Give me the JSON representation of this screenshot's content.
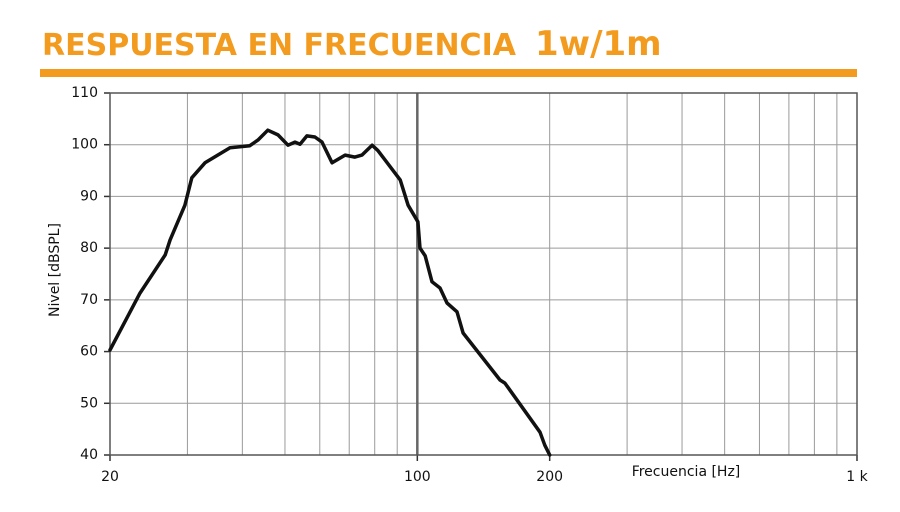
{
  "chart_data": {
    "type": "line",
    "title": "RESPUESTA EN FRECUENCIA",
    "subtitle": "1w/1m",
    "x_label": "Frecuencia [Hz]",
    "y_label": "Nivel [dBSPL]",
    "x_scale": "log",
    "xlim": [
      20,
      1000
    ],
    "xticks": [
      20,
      100,
      200,
      {
        "value": 1000,
        "label": "1 k"
      }
    ],
    "x_minor_ticks": [
      30,
      40,
      50,
      60,
      70,
      80,
      90,
      300,
      400,
      500,
      600,
      700,
      800,
      900
    ],
    "ylim": [
      40,
      110
    ],
    "yticks": [
      40,
      50,
      60,
      70,
      80,
      90,
      100,
      110
    ],
    "grid": true,
    "color": "#111111",
    "x": [
      20,
      23.4,
      26.7,
      27.4,
      29.6,
      30.7,
      32.9,
      37.5,
      41.6,
      43.4,
      45.7,
      48.2,
      50.8,
      52.7,
      54.1,
      56.1,
      58.5,
      60.7,
      64,
      68.5,
      72.1,
      74.8,
      78.9,
      81.3,
      91.4,
      95.3,
      100.3,
      101.4,
      104.2,
      108,
      112.6,
      116.8,
      123.1,
      127.1,
      154.2,
      158.2,
      190.1,
      195,
      200
    ],
    "values": [
      60.3,
      71.3,
      78.7,
      81.6,
      88.3,
      93.6,
      96.5,
      99.4,
      99.8,
      100.9,
      102.8,
      101.9,
      99.9,
      100.5,
      100.1,
      101.7,
      101.5,
      100.5,
      96.5,
      98,
      97.6,
      98,
      99.9,
      98.9,
      93.2,
      88.3,
      85.1,
      80,
      78.5,
      73.5,
      72.3,
      69.4,
      67.7,
      63.6,
      54.5,
      53.9,
      44.4,
      41.9,
      40
    ]
  }
}
